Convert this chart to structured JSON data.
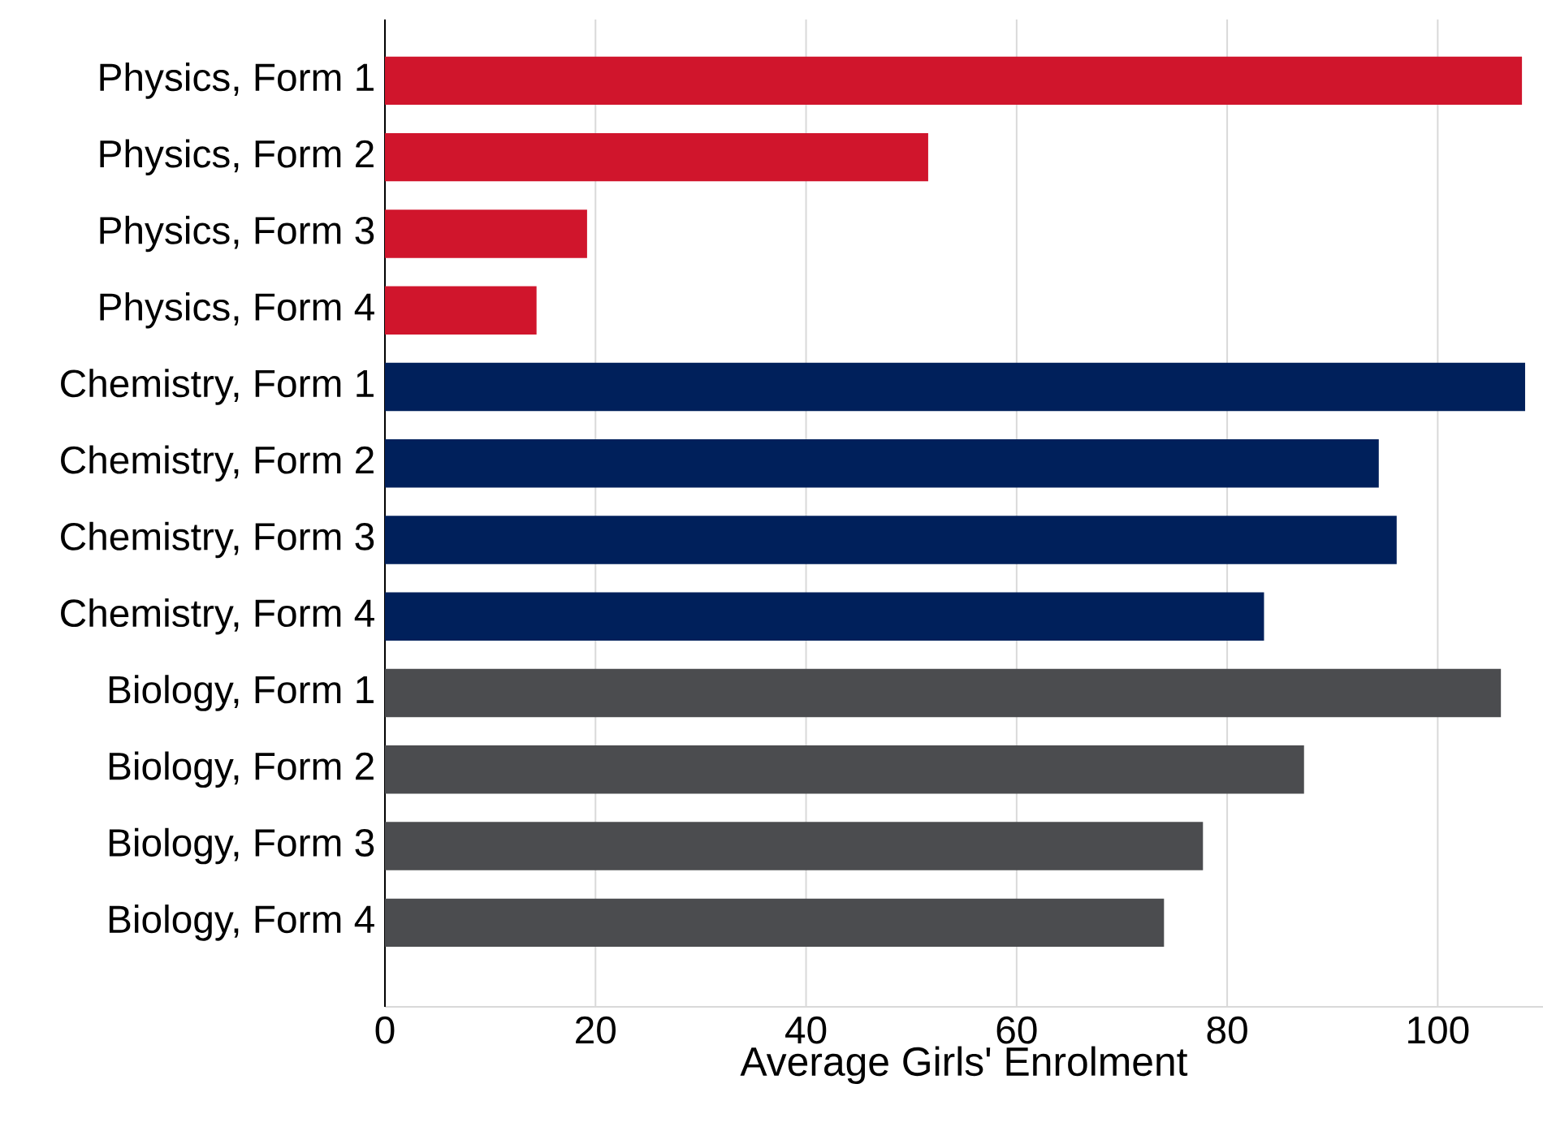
{
  "chart_data": {
    "type": "bar",
    "orientation": "horizontal",
    "xlabel": "Average Girls' Enrolment",
    "categories": [
      "Physics, Form 1",
      "Physics, Form 2",
      "Physics, Form 3",
      "Physics, Form 4",
      "Chemistry, Form 1",
      "Chemistry, Form 2",
      "Chemistry, Form 3",
      "Chemistry, Form 4",
      "Biology, Form 1",
      "Biology, Form 2",
      "Biology, Form 3",
      "Biology, Form 4"
    ],
    "values": [
      108,
      51.6,
      19.2,
      14.4,
      108.3,
      94.4,
      96.1,
      83.5,
      106,
      87.3,
      77.7,
      74
    ],
    "colors": [
      "#d0152c",
      "#d0152c",
      "#d0152c",
      "#d0152c",
      "#00205b",
      "#00205b",
      "#00205b",
      "#00205b",
      "#4b4c4f",
      "#4b4c4f",
      "#4b4c4f",
      "#4b4c4f"
    ],
    "xlim": [
      0,
      110
    ],
    "xticks": [
      0,
      20,
      40,
      60,
      80,
      100
    ],
    "grid": "x"
  }
}
